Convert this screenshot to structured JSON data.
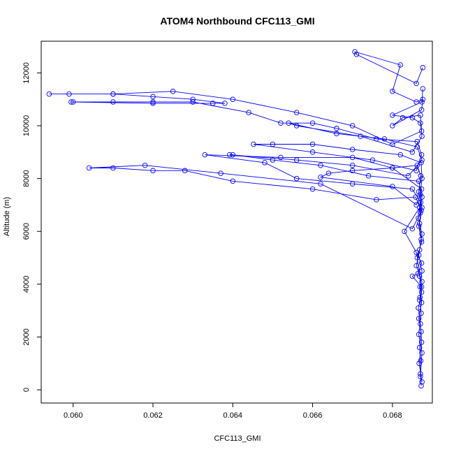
{
  "chart_data": {
    "type": "line",
    "title": "ATOM4 Northbound CFC113_GMI",
    "xlabel": "CFC113_GMI",
    "ylabel": "Altitude (m)",
    "xlim": [
      0.0592,
      0.069
    ],
    "ylim": [
      -500,
      13200
    ],
    "xticks": [
      0.06,
      0.062,
      0.064,
      0.066,
      0.068
    ],
    "xtick_labels": [
      "0.060",
      "0.062",
      "0.064",
      "0.066",
      "0.068"
    ],
    "yticks": [
      0,
      2000,
      4000,
      6000,
      8000,
      10000,
      12000
    ],
    "ytick_labels": [
      "0",
      "2000",
      "4000",
      "6000",
      "8000",
      "10000",
      "12000"
    ],
    "grid": false,
    "line_style": "line-with-open-circles",
    "colors": {
      "series": "#0000ff",
      "axes": "#000000",
      "background": "#ffffff"
    },
    "series": [
      {
        "points": [
          [
            0.06872,
            150
          ],
          [
            0.0687,
            600
          ],
          [
            0.06871,
            1100
          ],
          [
            0.06868,
            1600
          ],
          [
            0.06872,
            2200
          ],
          [
            0.06866,
            2700
          ],
          [
            0.06873,
            3300
          ],
          [
            0.06869,
            3900
          ],
          [
            0.06874,
            4500
          ],
          [
            0.06866,
            5100
          ],
          [
            0.06872,
            5700
          ],
          [
            0.06868,
            6300
          ],
          [
            0.06874,
            6900
          ],
          [
            0.06866,
            7500
          ],
          [
            0.06871,
            8100
          ],
          [
            0.06862,
            8500
          ],
          [
            0.068,
            8400
          ],
          [
            0.067,
            8300
          ],
          [
            0.0664,
            8200
          ],
          [
            0.0662,
            8050
          ],
          [
            0.068,
            7700
          ],
          [
            0.0686,
            7000
          ],
          [
            0.0687,
            7400
          ],
          [
            0.06874,
            8000
          ],
          [
            0.06872,
            8600
          ],
          [
            0.0682,
            8900
          ],
          [
            0.067,
            9100
          ],
          [
            0.066,
            9300
          ],
          [
            0.065,
            9300
          ],
          [
            0.06452,
            9300
          ],
          [
            0.066,
            9000
          ],
          [
            0.0675,
            8700
          ],
          [
            0.0686,
            8300
          ],
          [
            0.06873,
            8900
          ],
          [
            0.06862,
            9400
          ],
          [
            0.0676,
            9500
          ],
          [
            0.0666,
            9900
          ],
          [
            0.066,
            10100
          ],
          [
            0.0652,
            10100
          ],
          [
            0.0644,
            10500
          ],
          [
            0.063,
            10900
          ],
          [
            0.062,
            10900
          ],
          [
            0.061,
            10900
          ],
          [
            0.06,
            10900
          ],
          [
            0.05995,
            10900
          ],
          [
            0.062,
            10850
          ],
          [
            0.0635,
            10850
          ],
          [
            0.0638,
            10850
          ],
          [
            0.063,
            11000
          ],
          [
            0.062,
            11100
          ],
          [
            0.061,
            11200
          ],
          [
            0.0599,
            11200
          ],
          [
            0.0594,
            11200
          ],
          [
            0.061,
            11200
          ],
          [
            0.0625,
            11300
          ],
          [
            0.064,
            11000
          ],
          [
            0.0656,
            10500
          ],
          [
            0.067,
            10000
          ],
          [
            0.068,
            9300
          ],
          [
            0.06873,
            9800
          ],
          [
            0.0687,
            10400
          ],
          [
            0.06826,
            10300
          ],
          [
            0.068,
            10000
          ],
          [
            0.06873,
            10600
          ],
          [
            0.06876,
            11000
          ],
          [
            0.0686,
            10900
          ],
          [
            0.068,
            11300
          ],
          [
            0.0682,
            12300
          ],
          [
            0.06706,
            12800
          ],
          [
            0.0671,
            12700
          ],
          [
            0.0686,
            11600
          ],
          [
            0.06876,
            12200
          ]
        ]
      },
      {
        "points": [
          [
            0.06874,
            300
          ],
          [
            0.06867,
            1000
          ],
          [
            0.06873,
            1800
          ],
          [
            0.0687,
            2500
          ],
          [
            0.06865,
            3100
          ],
          [
            0.06873,
            3700
          ],
          [
            0.06868,
            4300
          ],
          [
            0.06862,
            5000
          ],
          [
            0.06873,
            5600
          ],
          [
            0.06866,
            6200
          ],
          [
            0.06872,
            6800
          ],
          [
            0.06858,
            7300
          ],
          [
            0.0676,
            7200
          ],
          [
            0.066,
            7600
          ],
          [
            0.064,
            7900
          ],
          [
            0.0628,
            8300
          ],
          [
            0.062,
            8300
          ],
          [
            0.061,
            8400
          ],
          [
            0.0604,
            8400
          ],
          [
            0.0618,
            8500
          ],
          [
            0.0637,
            8200
          ],
          [
            0.0662,
            7800
          ],
          [
            0.0685,
            6100
          ],
          [
            0.0687,
            6700
          ],
          [
            0.06874,
            7300
          ],
          [
            0.06866,
            7900
          ],
          [
            0.0674,
            8100
          ],
          [
            0.0662,
            8500
          ],
          [
            0.065,
            8700
          ],
          [
            0.064,
            8900
          ],
          [
            0.06392,
            8900
          ],
          [
            0.0656,
            8700
          ],
          [
            0.067,
            8500
          ],
          [
            0.0684,
            8100
          ],
          [
            0.06874,
            8700
          ],
          [
            0.06862,
            9200
          ],
          [
            0.0678,
            9500
          ],
          [
            0.0666,
            9700
          ],
          [
            0.0654,
            10100
          ],
          [
            0.0656,
            10000
          ],
          [
            0.0672,
            9600
          ],
          [
            0.0685,
            9000
          ],
          [
            0.06874,
            9600
          ],
          [
            0.0687,
            10100
          ],
          [
            0.0685,
            10300
          ],
          [
            0.068,
            10400
          ],
          [
            0.06874,
            10900
          ],
          [
            0.06876,
            11400
          ]
        ]
      },
      {
        "points": [
          [
            0.0687,
            500
          ],
          [
            0.06874,
            1400
          ],
          [
            0.06866,
            2100
          ],
          [
            0.06872,
            2900
          ],
          [
            0.06869,
            3500
          ],
          [
            0.06874,
            4100
          ],
          [
            0.0686,
            4700
          ],
          [
            0.06868,
            5300
          ],
          [
            0.06874,
            5900
          ],
          [
            0.06865,
            6500
          ],
          [
            0.06871,
            7100
          ],
          [
            0.0685,
            7600
          ],
          [
            0.067,
            7800
          ],
          [
            0.0656,
            8000
          ],
          [
            0.0648,
            8600
          ],
          [
            0.0633,
            8900
          ],
          [
            0.0652,
            8800
          ],
          [
            0.067,
            8800
          ],
          [
            0.068,
            8400
          ],
          [
            0.06873,
            7600
          ],
          [
            0.06868,
            6900
          ],
          [
            0.0683,
            6000
          ],
          [
            0.0686,
            5200
          ],
          [
            0.06873,
            4800
          ],
          [
            0.06864,
            4400
          ],
          [
            0.0685,
            4300
          ],
          [
            0.06873,
            3900
          ],
          [
            0.06868,
            3400
          ]
        ]
      }
    ]
  }
}
